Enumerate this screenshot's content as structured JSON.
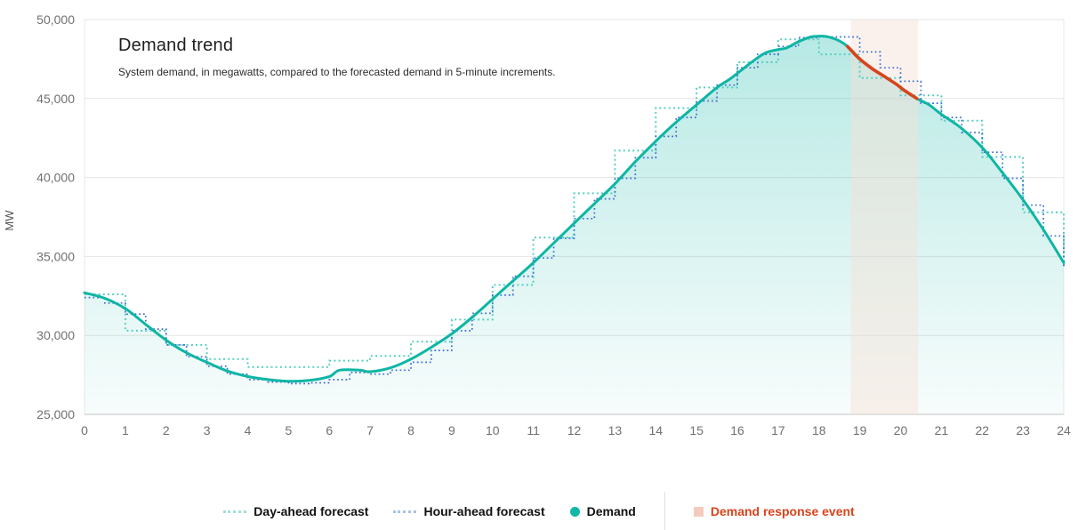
{
  "chart": {
    "title": "Demand trend",
    "subtitle": "System demand, in megawatts, compared to the forecasted demand in 5-minute increments."
  },
  "legend": {
    "day_ahead": "Day-ahead forecast",
    "hour_ahead": "Hour-ahead forecast",
    "demand": "Demand",
    "dr_event": "Demand response event"
  },
  "colors": {
    "demand_line": "#0eb6a4",
    "demand_dr_line": "#d8431c",
    "day_ahead_line": "#55cfc1",
    "hour_ahead_line": "#3b6cd2",
    "dr_band": "#f7e0d4",
    "area_top": "rgba(17,182,166,0.30)",
    "area_bottom": "rgba(17,182,166,0.03)",
    "legend_day_ahead_marker": "#9fe0d9",
    "legend_hour_ahead_marker": "#a9c3e2",
    "legend_demand_marker": "#10b9a6",
    "legend_dr_marker": "#f3cbbd",
    "legend_dr_text": "#d8431c",
    "gridline": "#e4e4e4",
    "plot_border": "#e9e9e9",
    "axis_bottom": "#d8d8d8",
    "tick_text": "#707070",
    "mw_text": "#555555"
  },
  "chart_data": {
    "type": "area",
    "title": "Demand trend",
    "subtitle": "System demand, in megawatts, compared to the forecasted demand in 5-minute increments.",
    "ylabel": "MW",
    "xlabel": "",
    "xlim": [
      0,
      24
    ],
    "ylim": [
      25000,
      50000
    ],
    "grid": "horizontal",
    "legend_position": "bottom-center",
    "x_ticks": [
      "0",
      "1",
      "2",
      "3",
      "4",
      "5",
      "6",
      "7",
      "8",
      "9",
      "10",
      "11",
      "12",
      "13",
      "14",
      "15",
      "16",
      "17",
      "18",
      "19",
      "20",
      "21",
      "22",
      "23",
      "24"
    ],
    "y_ticks": [
      {
        "value": 25000,
        "label": "25,000"
      },
      {
        "value": 30000,
        "label": "30,000"
      },
      {
        "value": 35000,
        "label": "35,000"
      },
      {
        "value": 40000,
        "label": "40,000"
      },
      {
        "value": 45000,
        "label": "45,000"
      },
      {
        "value": 50000,
        "label": "50,000"
      }
    ],
    "series": [
      {
        "name": "Day-ahead forecast",
        "style": "dotted-step",
        "step_hours": 1,
        "values": [
          32600,
          30300,
          29400,
          28500,
          28000,
          28000,
          28400,
          28700,
          29600,
          31000,
          33200,
          36200,
          39000,
          41700,
          44400,
          45700,
          47300,
          48750,
          47800,
          46300,
          45200,
          43600,
          41300,
          37800,
          34300
        ]
      },
      {
        "name": "Hour-ahead forecast",
        "style": "dotted-step",
        "step_hours": 0.5,
        "values": [
          32400,
          32050,
          31350,
          30400,
          29400,
          28650,
          28050,
          27550,
          27200,
          27050,
          26950,
          27000,
          27200,
          27650,
          27550,
          27800,
          28300,
          29050,
          30300,
          31400,
          32550,
          33750,
          34900,
          36150,
          37400,
          38650,
          39950,
          41250,
          42600,
          43800,
          44850,
          45850,
          46950,
          47800,
          48300,
          48850,
          48900,
          48900,
          47950,
          46950,
          46100,
          44700,
          43800,
          42850,
          41600,
          39950,
          38250,
          36300,
          34300
        ]
      },
      {
        "name": "Demand",
        "style": "smooth-line-area",
        "points": [
          [
            0,
            32700
          ],
          [
            0.5,
            32350
          ],
          [
            1,
            31700
          ],
          [
            1.5,
            30700
          ],
          [
            2,
            29700
          ],
          [
            2.5,
            28900
          ],
          [
            3,
            28300
          ],
          [
            3.5,
            27750
          ],
          [
            4,
            27400
          ],
          [
            4.5,
            27200
          ],
          [
            5,
            27100
          ],
          [
            5.5,
            27150
          ],
          [
            6,
            27400
          ],
          [
            6.25,
            27800
          ],
          [
            6.75,
            27800
          ],
          [
            7,
            27700
          ],
          [
            7.5,
            27950
          ],
          [
            8,
            28500
          ],
          [
            8.5,
            29250
          ],
          [
            9,
            30100
          ],
          [
            9.5,
            31150
          ],
          [
            10,
            32300
          ],
          [
            10.5,
            33450
          ],
          [
            11,
            34600
          ],
          [
            11.5,
            35850
          ],
          [
            12,
            37100
          ],
          [
            12.5,
            38350
          ],
          [
            13,
            39600
          ],
          [
            13.5,
            41000
          ],
          [
            14,
            42300
          ],
          [
            14.5,
            43500
          ],
          [
            15,
            44600
          ],
          [
            15.5,
            45700
          ],
          [
            15.8,
            46200
          ],
          [
            16.1,
            46800
          ],
          [
            16.4,
            47400
          ],
          [
            16.7,
            47900
          ],
          [
            17,
            48100
          ],
          [
            17.2,
            48200
          ],
          [
            17.5,
            48600
          ],
          [
            17.8,
            48900
          ],
          [
            18.1,
            48950
          ],
          [
            18.3,
            48850
          ],
          [
            18.5,
            48650
          ],
          [
            18.7,
            48300
          ],
          [
            19,
            47500
          ],
          [
            19.3,
            46900
          ],
          [
            19.6,
            46400
          ],
          [
            19.9,
            45900
          ],
          [
            20.1,
            45500
          ],
          [
            20.4,
            45000
          ],
          [
            20.7,
            44600
          ],
          [
            21,
            44000
          ],
          [
            21.5,
            43100
          ],
          [
            22,
            41900
          ],
          [
            22.5,
            40300
          ],
          [
            23,
            38600
          ],
          [
            23.5,
            36700
          ],
          [
            24,
            34600
          ]
        ]
      }
    ],
    "demand_response_event": {
      "name": "Demand response event",
      "band_start_hour": 18.78,
      "band_end_hour": 20.43,
      "line_start_hour": 18.7,
      "line_end_hour": 20.4,
      "demand_at_start_mw": 48300,
      "demand_at_end_mw": 45000
    }
  }
}
